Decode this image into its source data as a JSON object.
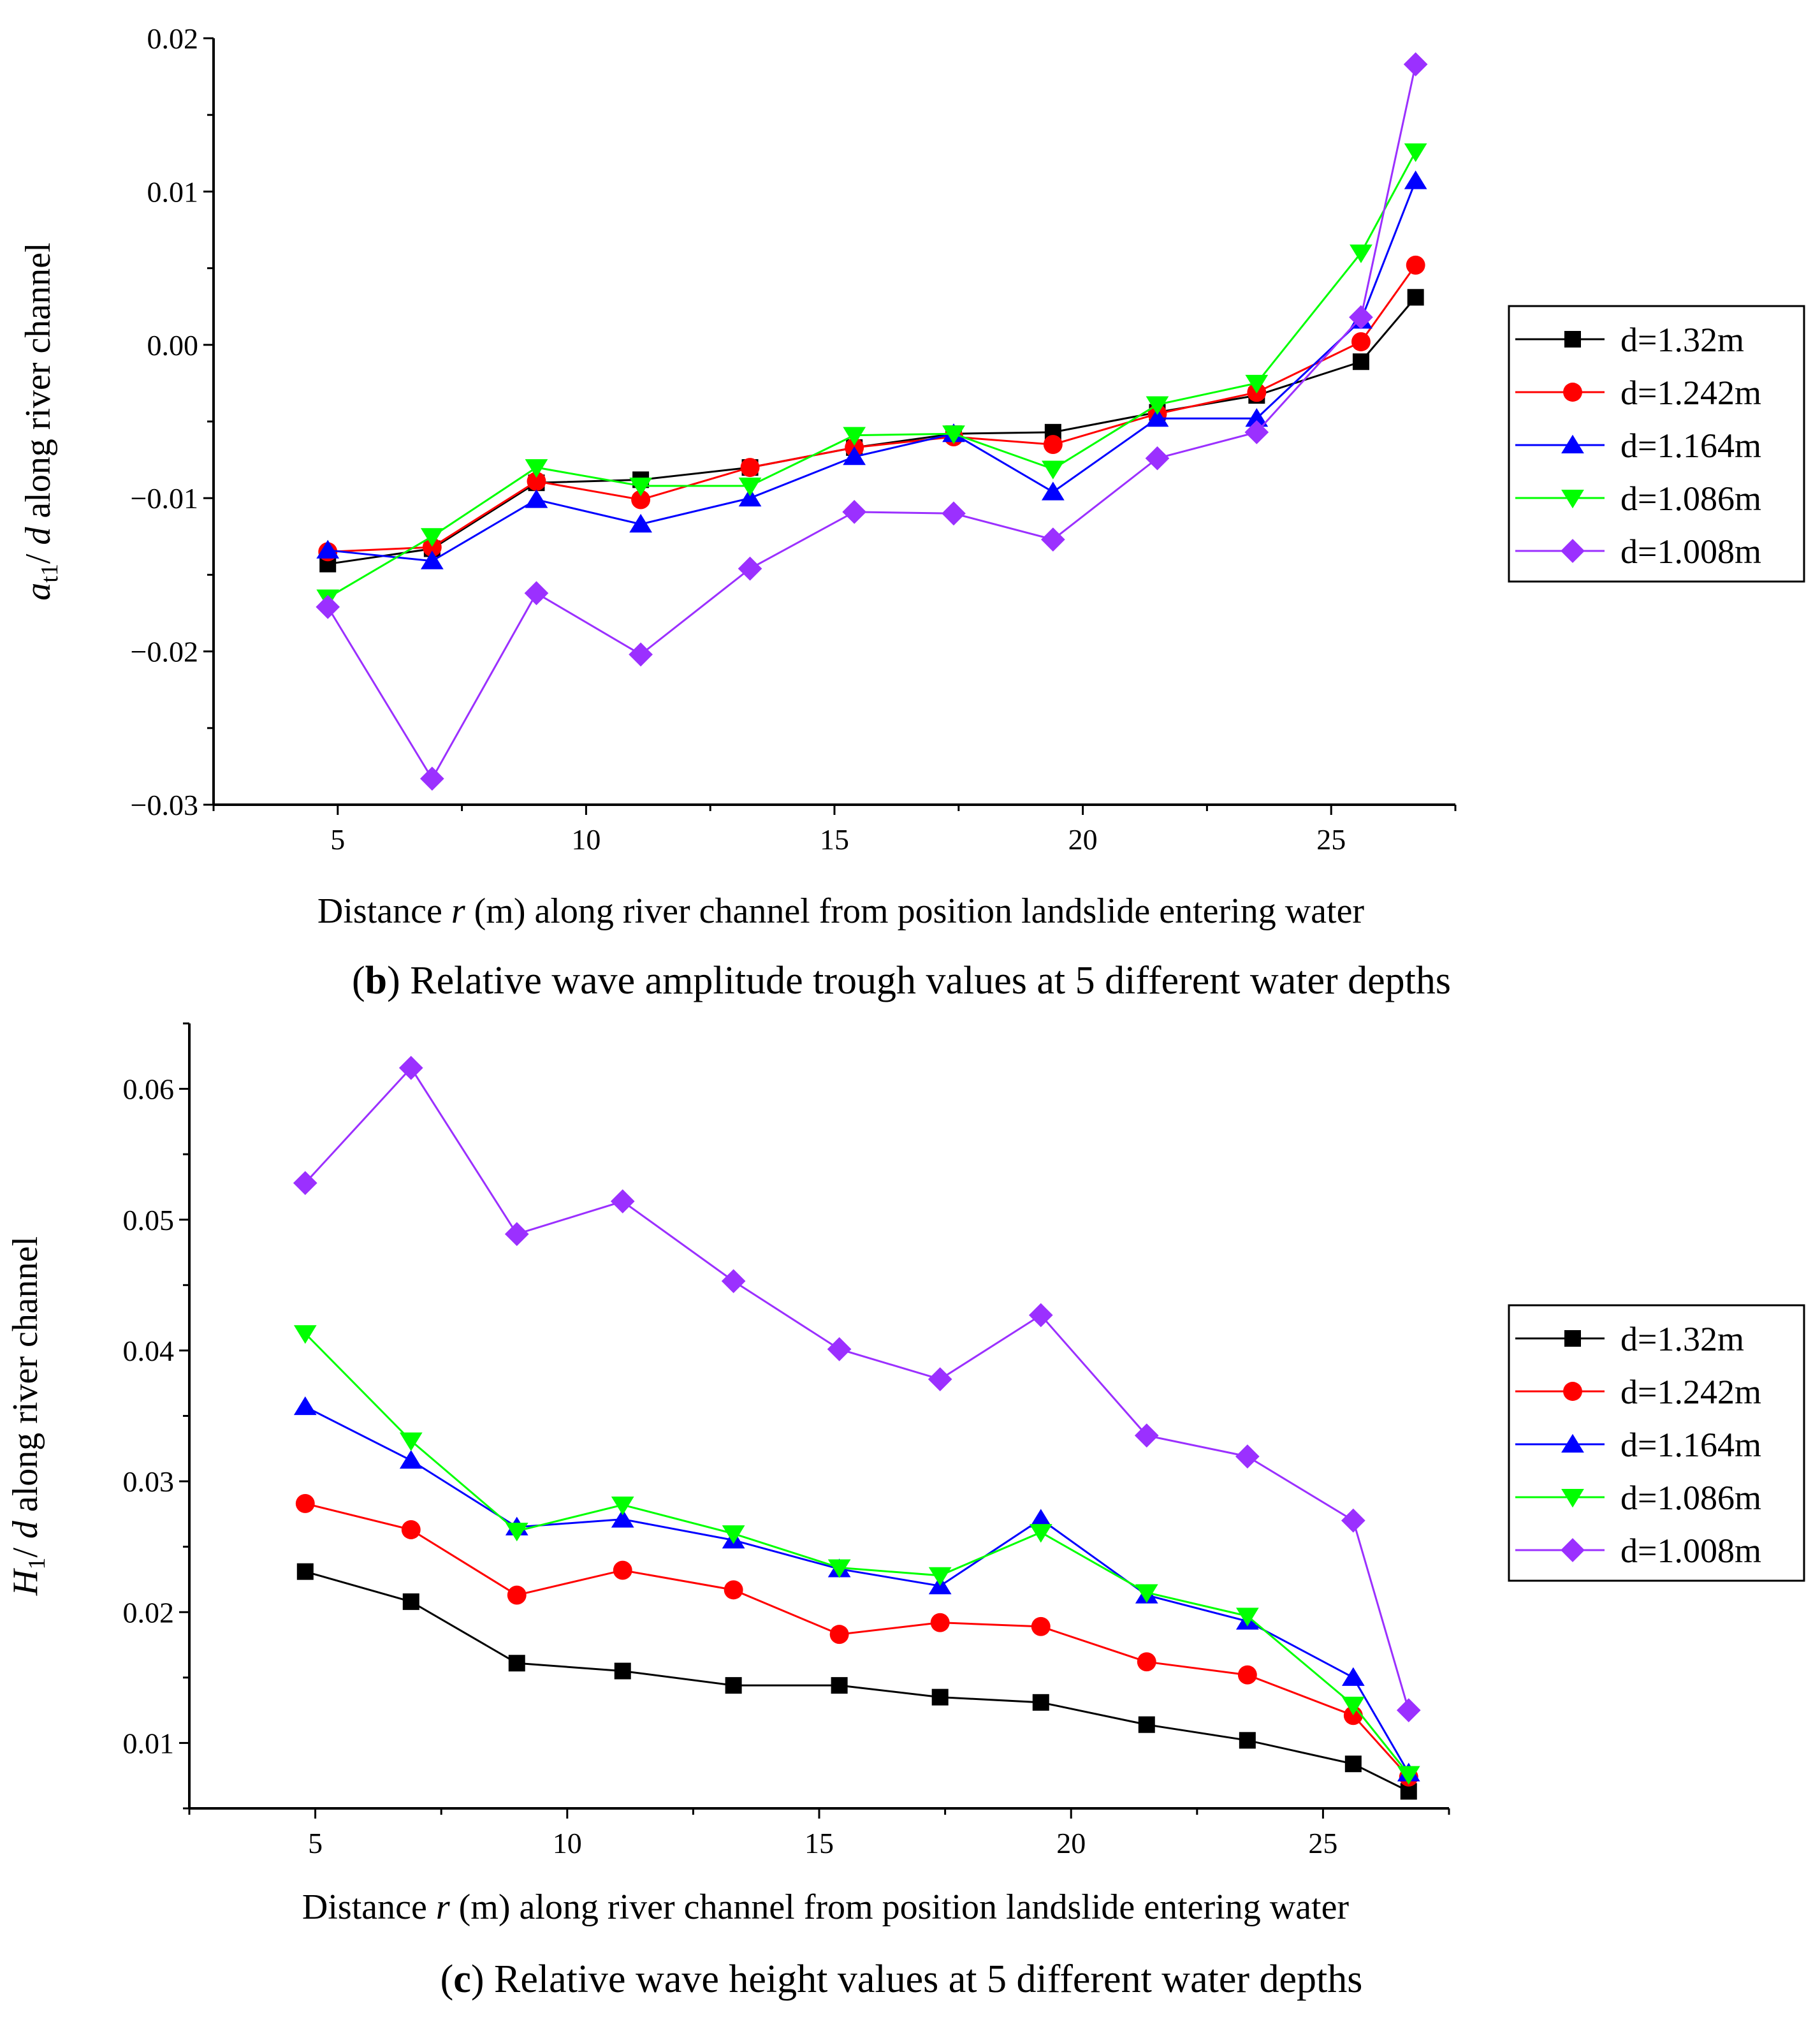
{
  "chart_data": [
    {
      "type": "line",
      "caption": {
        "label": "b",
        "text": "Relative wave amplitude trough values at 5 different water depths"
      },
      "xlabel": {
        "pre": "Distance ",
        "var": "r",
        "post": " (m) along river channel from position landslide entering water"
      },
      "ylabel": {
        "var": "a",
        "sub": "t1",
        "sep": "/ ",
        "var2": "d",
        "post": "  along river channel"
      },
      "xlim": [
        2.5,
        27.5
      ],
      "ylim": [
        -0.03,
        0.02
      ],
      "x_ticks": [
        5,
        10,
        15,
        20,
        25
      ],
      "y_ticks": [
        -0.03,
        -0.02,
        -0.01,
        0.0,
        0.01,
        0.02
      ],
      "y_tick_labels": [
        "−0.03",
        "−0.02",
        "−0.01",
        "0.00",
        "0.01",
        "0.02"
      ],
      "x": [
        4.8,
        6.9,
        9.0,
        11.1,
        13.3,
        15.4,
        17.4,
        19.4,
        21.5,
        23.5,
        25.6,
        26.7
      ],
      "legend_position": "right",
      "series": [
        {
          "name": "d=1.32m",
          "color": "#000000",
          "marker": "square",
          "values": [
            -0.0143,
            -0.0133,
            -0.009,
            -0.0088,
            -0.008,
            -0.0067,
            -0.0058,
            -0.0057,
            -0.0044,
            -0.0033,
            -0.0011,
            0.0031
          ]
        },
        {
          "name": "d=1.242m",
          "color": "#ff0000",
          "marker": "circle",
          "values": [
            -0.0135,
            -0.0132,
            -0.0089,
            -0.0101,
            -0.008,
            -0.0067,
            -0.006,
            -0.0065,
            -0.0045,
            -0.0031,
            0.0002,
            0.0052
          ]
        },
        {
          "name": "d=1.164m",
          "color": "#0000ff",
          "marker": "triangle-up",
          "values": [
            -0.0134,
            -0.0141,
            -0.0101,
            -0.0117,
            -0.01,
            -0.0073,
            -0.0058,
            -0.0096,
            -0.0048,
            -0.0048,
            0.0016,
            0.0107
          ]
        },
        {
          "name": "d=1.086m",
          "color": "#00ff00",
          "marker": "triangle-down",
          "values": [
            -0.0165,
            -0.0125,
            -0.008,
            -0.0092,
            -0.0092,
            -0.0059,
            -0.0058,
            -0.0081,
            -0.0039,
            -0.0025,
            0.006,
            0.0126
          ]
        },
        {
          "name": "d=1.008m",
          "color": "#9b30ff",
          "marker": "diamond",
          "values": [
            -0.0171,
            -0.0283,
            -0.0162,
            -0.0202,
            -0.0146,
            -0.0109,
            -0.011,
            -0.0127,
            -0.0074,
            -0.0057,
            0.0018,
            0.0183
          ]
        }
      ]
    },
    {
      "type": "line",
      "caption": {
        "label": "c",
        "text": "Relative wave height values at 5 different water depths"
      },
      "xlabel": {
        "pre": "Distance ",
        "var": "r",
        "post": " (m) along river channel from position landslide entering water"
      },
      "ylabel": {
        "var": "H",
        "sub": "1",
        "sep": "/ ",
        "var2": "d",
        "post": "  along river channel"
      },
      "xlim": [
        2.5,
        27.5
      ],
      "ylim": [
        0.005,
        0.065
      ],
      "x_ticks": [
        5,
        10,
        15,
        20,
        25
      ],
      "y_ticks": [
        0.01,
        0.02,
        0.03,
        0.04,
        0.05,
        0.06
      ],
      "y_tick_labels": [
        "0.01",
        "0.02",
        "0.03",
        "0.04",
        "0.05",
        "0.06"
      ],
      "x": [
        4.8,
        6.9,
        9.0,
        11.1,
        13.3,
        15.4,
        17.4,
        19.4,
        21.5,
        23.5,
        25.6,
        26.7
      ],
      "legend_position": "right",
      "series": [
        {
          "name": "d=1.32m",
          "color": "#000000",
          "marker": "square",
          "values": [
            0.0231,
            0.0208,
            0.0161,
            0.0155,
            0.0144,
            0.0144,
            0.0135,
            0.0131,
            0.0114,
            0.0102,
            0.0084,
            0.0063
          ]
        },
        {
          "name": "d=1.242m",
          "color": "#ff0000",
          "marker": "circle",
          "values": [
            0.0283,
            0.0263,
            0.0213,
            0.0232,
            0.0217,
            0.0183,
            0.0192,
            0.0189,
            0.0162,
            0.0152,
            0.0121,
            0.0074
          ]
        },
        {
          "name": "d=1.164m",
          "color": "#0000ff",
          "marker": "triangle-up",
          "values": [
            0.0357,
            0.0316,
            0.0265,
            0.0271,
            0.0255,
            0.0233,
            0.022,
            0.0271,
            0.0213,
            0.0193,
            0.015,
            0.0077
          ]
        },
        {
          "name": "d=1.086m",
          "color": "#00ff00",
          "marker": "triangle-down",
          "values": [
            0.0413,
            0.0331,
            0.0262,
            0.0282,
            0.026,
            0.0234,
            0.0228,
            0.0261,
            0.0215,
            0.0197,
            0.0129,
            0.0076
          ]
        },
        {
          "name": "d=1.008m",
          "color": "#9b30ff",
          "marker": "diamond",
          "values": [
            0.0528,
            0.0616,
            0.0489,
            0.0514,
            0.0453,
            0.0401,
            0.0378,
            0.0427,
            0.0335,
            0.0319,
            0.027,
            0.0125
          ]
        }
      ]
    }
  ]
}
